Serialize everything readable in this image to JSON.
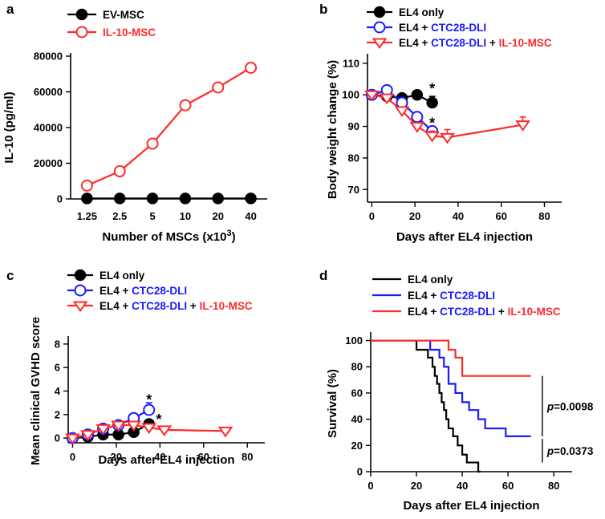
{
  "colors": {
    "black": "#000000",
    "blue": "#1a1aff",
    "red": "#ff2a2a"
  },
  "chart_data": [
    {
      "panel": "a",
      "type": "line",
      "categories": [
        "1.25",
        "2.5",
        "5",
        "10",
        "20",
        "40"
      ],
      "series": [
        {
          "name": "EV-MSC",
          "color": "black",
          "marker": "filled-circle",
          "values": [
            300,
            300,
            300,
            300,
            300,
            300
          ]
        },
        {
          "name": "IL-10-MSC",
          "color": "red",
          "marker": "open-circle",
          "values": [
            7500,
            15500,
            31000,
            52500,
            62500,
            73500
          ]
        }
      ],
      "xlabel": "Number of MSCs (x10",
      "xlabel_sup": "3",
      "xlabel_end": ")",
      "ylabel": "IL-10 (pg/ml)",
      "ylim": [
        0,
        80000
      ],
      "yticks": [
        0,
        20000,
        40000,
        60000,
        80000
      ],
      "legend_position": "top-left"
    },
    {
      "panel": "b",
      "type": "line",
      "series": [
        {
          "name": "EL4 only",
          "color": "black",
          "marker": "filled-circle",
          "x": [
            0,
            7,
            14,
            21,
            28
          ],
          "y": [
            100,
            99.5,
            99,
            100,
            97.5
          ],
          "err": [
            0,
            0,
            0,
            0,
            2
          ]
        },
        {
          "name": "EL4 + CTC28-DLI",
          "color": "blue",
          "marker": "open-circle",
          "x": [
            0,
            7,
            14,
            21,
            28
          ],
          "y": [
            100,
            101.5,
            97.5,
            93,
            88.5
          ],
          "err": [
            0,
            0,
            0,
            1,
            1.5
          ]
        },
        {
          "name": "EL4 + CTC28-DLI + IL-10-MSC",
          "color": "red",
          "marker": "open-triangle-down",
          "x": [
            0,
            7,
            14,
            21,
            28,
            35,
            70
          ],
          "y": [
            100,
            99,
            95,
            90,
            87,
            86.5,
            90.5
          ],
          "err": [
            0,
            0,
            1,
            1,
            1.5,
            2.5,
            2.5
          ]
        }
      ],
      "legend_parts": [
        [
          {
            "text": "EL4 only",
            "color": "black"
          }
        ],
        [
          {
            "text": "EL4 + ",
            "color": "black"
          },
          {
            "text": "CTC28-DLI",
            "color": "blue"
          }
        ],
        [
          {
            "text": "EL4 + ",
            "color": "black"
          },
          {
            "text": "CTC28-DLI",
            "color": "blue"
          },
          {
            "text": " + ",
            "color": "black"
          },
          {
            "text": "IL-10-MSC",
            "color": "red"
          }
        ]
      ],
      "annotations": [
        {
          "text": "*",
          "x": 28,
          "y": 102.5
        },
        {
          "text": "*",
          "x": 28,
          "y": 91.5
        }
      ],
      "xlabel": "Days after EL4 injection",
      "ylabel": "Body weight change (%)",
      "xlim": [
        -2,
        88
      ],
      "xticks": [
        0,
        20,
        40,
        60,
        80
      ],
      "ylim": [
        66,
        112
      ],
      "yticks": [
        70,
        80,
        90,
        100,
        110
      ],
      "legend_position": "top"
    },
    {
      "panel": "c",
      "type": "line",
      "series": [
        {
          "name": "EL4 only",
          "color": "black",
          "marker": "filled-circle",
          "x": [
            0,
            7,
            14,
            21,
            28,
            35
          ],
          "y": [
            0,
            0.1,
            0.3,
            0.3,
            0.5,
            1.2
          ],
          "err": [
            0,
            0,
            0,
            0,
            0,
            0.3
          ]
        },
        {
          "name": "EL4 + CTC28-DLI",
          "color": "blue",
          "marker": "open-circle",
          "x": [
            0,
            7,
            14,
            21,
            28,
            35
          ],
          "y": [
            0,
            0.3,
            0.8,
            1.1,
            1.7,
            2.4
          ],
          "err": [
            0,
            0,
            0,
            0.1,
            0.2,
            0.6
          ]
        },
        {
          "name": "EL4 + CTC28-DLI + IL-10-MSC",
          "color": "red",
          "marker": "open-triangle-down",
          "x": [
            0,
            7,
            14,
            21,
            28,
            35,
            42,
            70
          ],
          "y": [
            0,
            0.3,
            0.8,
            1.1,
            1.1,
            0.9,
            0.7,
            0.6
          ],
          "err": [
            0,
            0,
            0.2,
            0.2,
            0.3,
            0.3,
            0.3,
            0.2
          ]
        }
      ],
      "legend_parts": [
        [
          {
            "text": "EL4 only",
            "color": "black"
          }
        ],
        [
          {
            "text": "EL4 + ",
            "color": "black"
          },
          {
            "text": "CTC28-DLI",
            "color": "blue"
          }
        ],
        [
          {
            "text": "EL4 + ",
            "color": "black"
          },
          {
            "text": "CTC28-DLI",
            "color": "blue"
          },
          {
            "text": " + ",
            "color": "black"
          },
          {
            "text": "IL-10-MSC",
            "color": "red"
          }
        ]
      ],
      "annotations": [
        {
          "text": "*",
          "x": 35,
          "y": 3.4
        },
        {
          "text": "*",
          "x": 39.5,
          "y": 1.7
        }
      ],
      "xlabel": "Days after EL4 injection",
      "ylabel": "Mean clinical GVHD score",
      "xlim": [
        -2,
        88
      ],
      "xticks": [
        0,
        20,
        40,
        60,
        80
      ],
      "ylim": [
        -0.4,
        8.4
      ],
      "yticks": [
        0,
        2,
        4,
        6,
        8
      ],
      "legend_position": "top-left"
    },
    {
      "panel": "d",
      "type": "line",
      "series": [
        {
          "name": "EL4 only",
          "color": "black",
          "steps": [
            [
              0,
              100
            ],
            [
              20,
              100
            ],
            [
              20,
              93
            ],
            [
              25,
              93
            ],
            [
              25,
              87
            ],
            [
              27,
              87
            ],
            [
              27,
              80
            ],
            [
              28,
              80
            ],
            [
              28,
              73
            ],
            [
              29,
              73
            ],
            [
              29,
              67
            ],
            [
              30,
              67
            ],
            [
              30,
              60
            ],
            [
              31,
              60
            ],
            [
              31,
              53
            ],
            [
              32,
              53
            ],
            [
              32,
              47
            ],
            [
              33,
              47
            ],
            [
              33,
              40
            ],
            [
              34,
              40
            ],
            [
              34,
              33
            ],
            [
              36,
              33
            ],
            [
              36,
              27
            ],
            [
              38,
              27
            ],
            [
              38,
              20
            ],
            [
              40,
              20
            ],
            [
              40,
              13
            ],
            [
              42,
              13
            ],
            [
              42,
              7
            ],
            [
              47,
              7
            ],
            [
              47,
              0
            ],
            [
              48,
              0
            ]
          ]
        },
        {
          "name": "EL4 + CTC28-DLI",
          "color": "blue",
          "steps": [
            [
              0,
              100
            ],
            [
              26,
              100
            ],
            [
              26,
              93
            ],
            [
              30,
              93
            ],
            [
              30,
              87
            ],
            [
              32,
              87
            ],
            [
              32,
              80
            ],
            [
              34,
              80
            ],
            [
              34,
              67
            ],
            [
              37,
              67
            ],
            [
              37,
              60
            ],
            [
              40,
              60
            ],
            [
              40,
              53
            ],
            [
              43,
              53
            ],
            [
              43,
              47
            ],
            [
              47,
              47
            ],
            [
              47,
              40
            ],
            [
              50,
              40
            ],
            [
              50,
              33
            ],
            [
              59,
              33
            ],
            [
              59,
              27
            ],
            [
              70,
              27
            ]
          ]
        },
        {
          "name": "EL4 + CTC28-DLI + IL-10-MSC",
          "color": "red",
          "steps": [
            [
              0,
              100
            ],
            [
              34,
              100
            ],
            [
              34,
              93
            ],
            [
              37,
              93
            ],
            [
              37,
              87
            ],
            [
              40,
              87
            ],
            [
              40,
              73
            ],
            [
              70,
              73
            ]
          ]
        }
      ],
      "legend_parts": [
        [
          {
            "text": "EL4 only",
            "color": "black"
          }
        ],
        [
          {
            "text": "EL4 + ",
            "color": "black"
          },
          {
            "text": "CTC28-DLI",
            "color": "blue"
          }
        ],
        [
          {
            "text": "EL4 + ",
            "color": "black"
          },
          {
            "text": "CTC28-DLI",
            "color": "blue"
          },
          {
            "text": " + ",
            "color": "black"
          },
          {
            "text": "IL-10-MSC",
            "color": "red"
          }
        ]
      ],
      "brackets": [
        {
          "y_top": 73,
          "y_bottom": 27,
          "p_prefix": "p",
          "p_value": "=0.0098"
        },
        {
          "y_top": 25,
          "y_bottom": 7,
          "p_prefix": "p",
          "p_value": "=0.0373"
        }
      ],
      "xlabel": "Days after EL4 injection",
      "ylabel": "Survival (%)",
      "xlim": [
        0,
        88
      ],
      "xticks": [
        0,
        20,
        40,
        60,
        80
      ],
      "ylim": [
        0,
        104
      ],
      "yticks": [
        0,
        20,
        40,
        60,
        80,
        100
      ],
      "legend_position": "top"
    }
  ]
}
